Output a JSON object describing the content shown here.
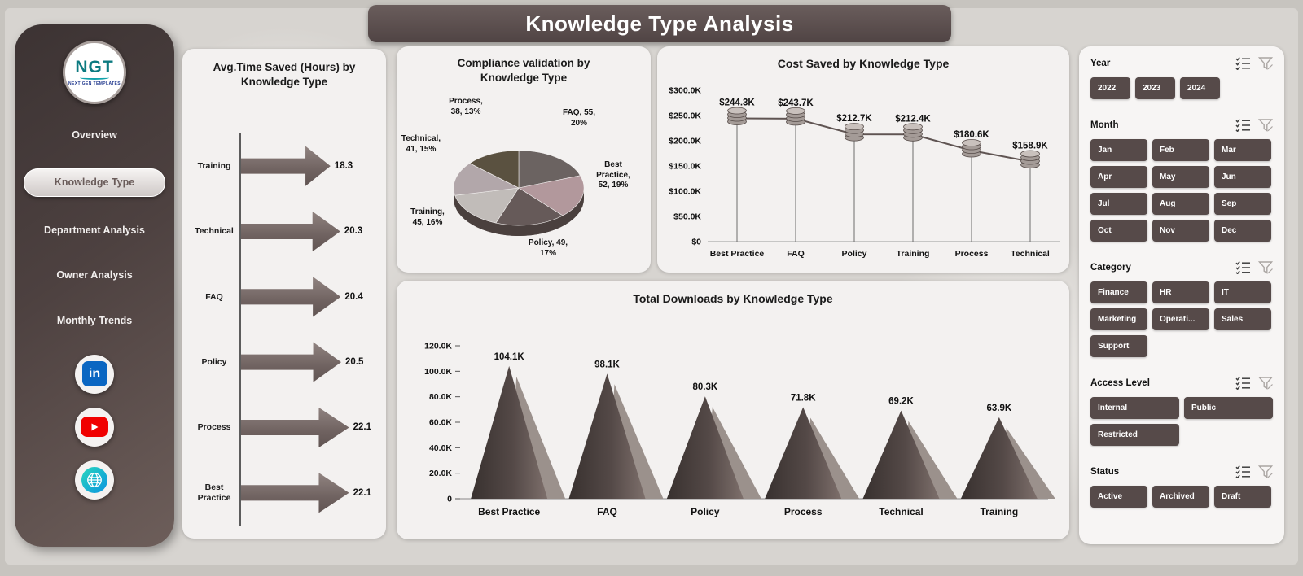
{
  "header": {
    "title": "Knowledge Type Analysis"
  },
  "sidebar": {
    "logo": {
      "text": "NGT",
      "subtext": "NEXT GEN TEMPLATES"
    },
    "items": [
      {
        "label": "Overview",
        "active": false
      },
      {
        "label": "Knowledge Type",
        "active": true
      },
      {
        "label": "Department Analysis",
        "active": false
      },
      {
        "label": "Owner Analysis",
        "active": false
      },
      {
        "label": "Monthly Trends",
        "active": false
      }
    ],
    "social": [
      "linkedin",
      "youtube",
      "website"
    ]
  },
  "filters": {
    "sections": [
      {
        "label": "Year",
        "options": [
          "2022",
          "2023",
          "2024"
        ]
      },
      {
        "label": "Month",
        "options": [
          "Jan",
          "Feb",
          "Mar",
          "Apr",
          "May",
          "Jun",
          "Jul",
          "Aug",
          "Sep",
          "Oct",
          "Nov",
          "Dec"
        ]
      },
      {
        "label": "Category",
        "options": [
          "Finance",
          "HR",
          "IT",
          "Marketing",
          "Operati...",
          "Sales",
          "Support"
        ]
      },
      {
        "label": "Access Level",
        "options": [
          "Internal",
          "Public",
          "Restricted"
        ]
      },
      {
        "label": "Status",
        "options": [
          "Active",
          "Archived",
          "Draft"
        ]
      }
    ]
  },
  "colors": {
    "sidebar_dark": "#3c3333",
    "accent_brown": "#564a49",
    "card_bg": "#f3f1f0",
    "linkedin_blue": "#0a66c2",
    "youtube_red": "#f00000",
    "globe_teal": "#14b8c8"
  },
  "chart_data": [
    {
      "type": "bar",
      "title": "Avg.Time Saved (Hours) by Knowledge Type",
      "orientation": "horizontal",
      "marker": "arrow",
      "categories": [
        "Training",
        "Technical",
        "FAQ",
        "Policy",
        "Process",
        "Best Practice"
      ],
      "values": [
        18.3,
        20.3,
        20.4,
        20.5,
        22.1,
        22.1
      ],
      "xlim": [
        0,
        25
      ]
    },
    {
      "type": "pie",
      "title": "Compliance validation by Knowledge Type",
      "style": "3d",
      "slices": [
        {
          "label": "FAQ",
          "value": 55,
          "pct": "20%",
          "color": "#6b6361"
        },
        {
          "label": "Best Practice",
          "value": 52,
          "pct": "19%",
          "color": "#b2989c"
        },
        {
          "label": "Policy",
          "value": 49,
          "pct": "17%",
          "color": "#665a59"
        },
        {
          "label": "Training",
          "value": 45,
          "pct": "16%",
          "color": "#c1bcb9"
        },
        {
          "label": "Technical",
          "value": 41,
          "pct": "15%",
          "color": "#b2a7aa"
        },
        {
          "label": "Process",
          "value": 38,
          "pct": "13%",
          "color": "#5a5140"
        }
      ]
    },
    {
      "type": "line",
      "title": "Cost Saved by Knowledge Type",
      "marker": "coin-stack",
      "categories": [
        "Best Practice",
        "FAQ",
        "Policy",
        "Training",
        "Process",
        "Technical"
      ],
      "values": [
        244300,
        243700,
        212700,
        212400,
        180600,
        158900
      ],
      "labels": [
        "$244.3K",
        "$243.7K",
        "$212.7K",
        "$212.4K",
        "$180.6K",
        "$158.9K"
      ],
      "ylim": [
        0,
        300000
      ],
      "yticks": [
        "$0",
        "$50.0K",
        "$100.0K",
        "$150.0K",
        "$200.0K",
        "$250.0K",
        "$300.0K"
      ]
    },
    {
      "type": "area",
      "title": "Total Downloads by Knowledge Type",
      "marker": "cone",
      "categories": [
        "Best Practice",
        "FAQ",
        "Policy",
        "Process",
        "Technical",
        "Training"
      ],
      "values": [
        104100,
        98100,
        80300,
        71800,
        69200,
        63900
      ],
      "labels": [
        "104.1K",
        "98.1K",
        "80.3K",
        "71.8K",
        "69.2K",
        "63.9K"
      ],
      "ylim": [
        0,
        120000
      ],
      "yticks": [
        "0",
        "20.0K",
        "40.0K",
        "60.0K",
        "80.0K",
        "100.0K",
        "120.0K"
      ]
    }
  ]
}
